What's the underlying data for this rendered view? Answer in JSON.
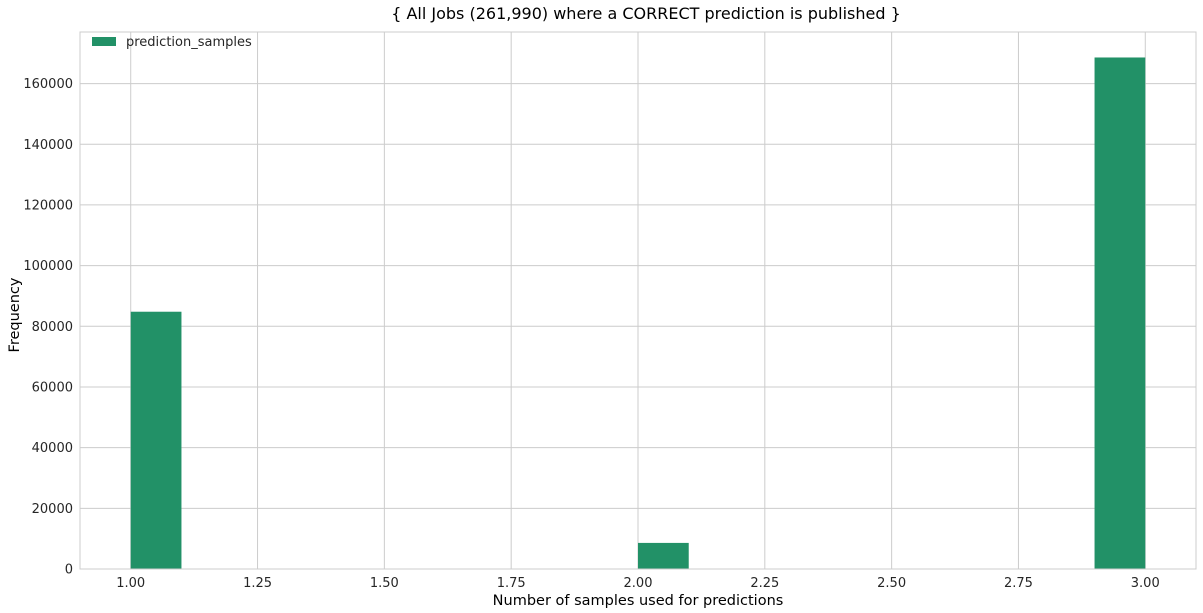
{
  "chart_data": {
    "type": "bar",
    "title": "{ All Jobs (261,990) where a CORRECT prediction is published }",
    "xlabel": "Number of samples used for predictions",
    "ylabel": "Frequency",
    "xlim": [
      0.9,
      3.1
    ],
    "ylim": [
      0,
      177000
    ],
    "xticks": [
      1.0,
      1.25,
      1.5,
      1.75,
      2.0,
      2.25,
      2.5,
      2.75,
      3.0
    ],
    "xtick_labels": [
      "1.00",
      "1.25",
      "1.50",
      "1.75",
      "2.00",
      "2.25",
      "2.50",
      "2.75",
      "3.00"
    ],
    "yticks": [
      0,
      20000,
      40000,
      60000,
      80000,
      100000,
      120000,
      140000,
      160000
    ],
    "ytick_labels": [
      "0",
      "20000",
      "40000",
      "60000",
      "80000",
      "100000",
      "120000",
      "140000",
      "160000"
    ],
    "bin_width": 0.1,
    "series": [
      {
        "name": "prediction_samples",
        "color": "#229167",
        "bins": [
          {
            "x": 1.0,
            "value": 84800
          },
          {
            "x": 2.0,
            "value": 8600
          },
          {
            "x": 2.9,
            "value": 168600
          }
        ]
      }
    ],
    "grid": true,
    "legend_position": "top-left"
  }
}
